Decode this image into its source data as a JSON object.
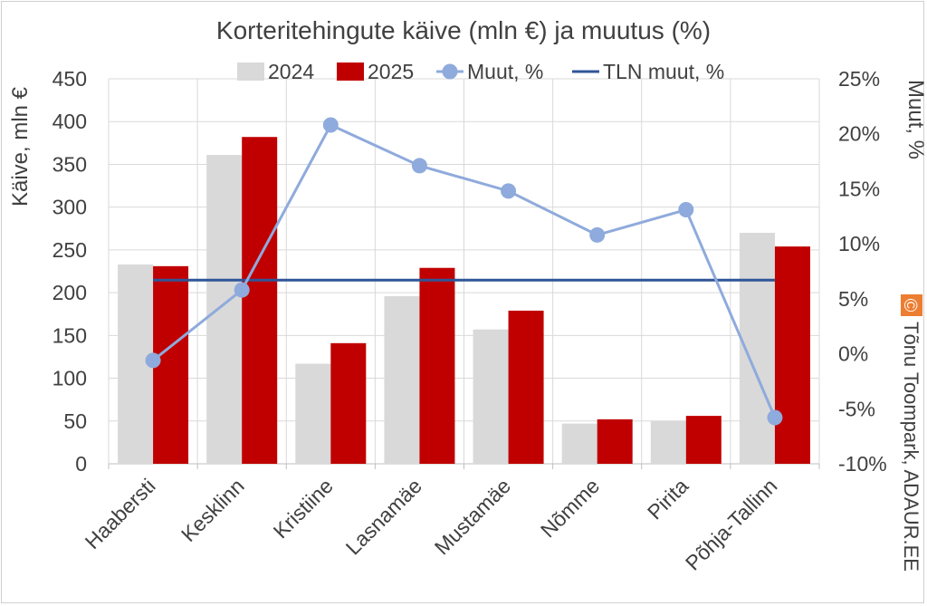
{
  "chart_data": {
    "type": "bar",
    "title": "Korteritehingute käive (mln €) ja muutus (%)",
    "ylabel": "Käive, mln €",
    "y2label": "Muut, %",
    "ylim": [
      0,
      450
    ],
    "y2lim": [
      -10,
      25
    ],
    "yticks": [
      "0",
      "50",
      "100",
      "150",
      "200",
      "250",
      "300",
      "350",
      "400",
      "450"
    ],
    "y2ticks": [
      "-10%",
      "-5%",
      "0%",
      "5%",
      "10%",
      "15%",
      "20%",
      "25%"
    ],
    "categories": [
      "Haabersti",
      "Kesklinn",
      "Kristiine",
      "Lasnamäe",
      "Mustamäe",
      "Nõmme",
      "Pirita",
      "Põhja-Tallinn"
    ],
    "series": [
      {
        "name": "2024",
        "kind": "bar",
        "color": "#d9d9d9",
        "values": [
          233,
          361,
          117,
          196,
          157,
          47,
          50,
          270
        ]
      },
      {
        "name": "2025",
        "kind": "bar",
        "color": "#c00000",
        "values": [
          231,
          382,
          141,
          229,
          179,
          52,
          56,
          254
        ]
      },
      {
        "name": "Muut, %",
        "kind": "line-marker",
        "axis": "right",
        "color": "#8faadc",
        "values": [
          -0.6,
          5.8,
          20.8,
          17.1,
          14.8,
          10.8,
          13.1,
          -5.8
        ]
      },
      {
        "name": "TLN muut, %",
        "kind": "line",
        "axis": "right",
        "color": "#2f5597",
        "values": [
          6.7,
          6.7,
          6.7,
          6.7,
          6.7,
          6.7,
          6.7,
          6.7
        ]
      }
    ],
    "grid": true,
    "legend": "top"
  },
  "watermark": {
    "symbol": "©",
    "text": "Tõnu Toompark, ADAUR.EE",
    "symbol_bg": "#ed7d31"
  }
}
